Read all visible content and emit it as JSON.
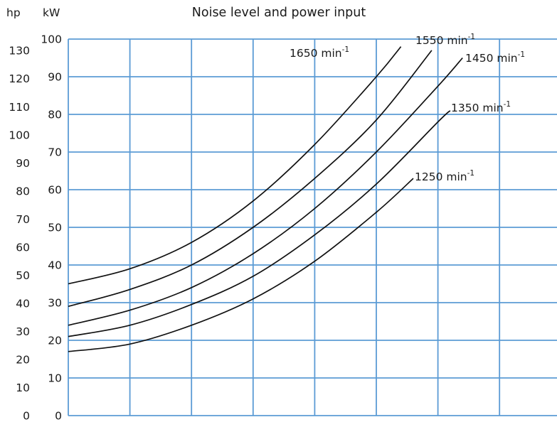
{
  "chart_data": {
    "type": "line",
    "title": "Noise level and power input",
    "y_units": {
      "primary": "kW",
      "secondary": "hp"
    },
    "ylim": [
      0,
      100
    ],
    "y_ticks_kw": [
      0,
      10,
      20,
      30,
      40,
      50,
      60,
      70,
      80,
      90,
      100
    ],
    "y_ticks_hp": [
      0,
      10,
      20,
      30,
      40,
      50,
      60,
      70,
      80,
      90,
      100,
      110,
      120,
      130
    ],
    "x_ticks": [],
    "grid": true,
    "series": [
      {
        "name": "1250 min⁻¹",
        "label_text": "1250 min",
        "label_sup": "-1",
        "x": [
          0,
          1,
          2,
          3,
          4,
          5,
          5.6
        ],
        "y": [
          17,
          19,
          24,
          31,
          41,
          54,
          63
        ]
      },
      {
        "name": "1350 min⁻¹",
        "label_text": "1350 min",
        "label_sup": "-1",
        "x": [
          0,
          1,
          2,
          3,
          4,
          5,
          6,
          6.2
        ],
        "y": [
          21,
          24,
          29.5,
          37,
          48,
          61.5,
          78,
          81
        ]
      },
      {
        "name": "1450 min⁻¹",
        "label_text": "1450 min",
        "label_sup": "-1",
        "x": [
          0,
          1,
          2,
          3,
          4,
          5,
          6,
          6.4
        ],
        "y": [
          24,
          28,
          34,
          43,
          55,
          70,
          87.5,
          95
        ]
      },
      {
        "name": "1550 min⁻¹",
        "label_text": "1550 min",
        "label_sup": "-1",
        "x": [
          0,
          1,
          2,
          3,
          4,
          5,
          5.9
        ],
        "y": [
          29,
          33.5,
          40,
          50,
          63,
          78.5,
          97
        ]
      },
      {
        "name": "1650 min⁻¹",
        "label_text": "1650 min",
        "label_sup": "-1",
        "x": [
          0,
          1,
          2,
          3,
          4,
          5,
          5.4
        ],
        "y": [
          35,
          39,
          46,
          57,
          72,
          90,
          98
        ]
      }
    ]
  }
}
